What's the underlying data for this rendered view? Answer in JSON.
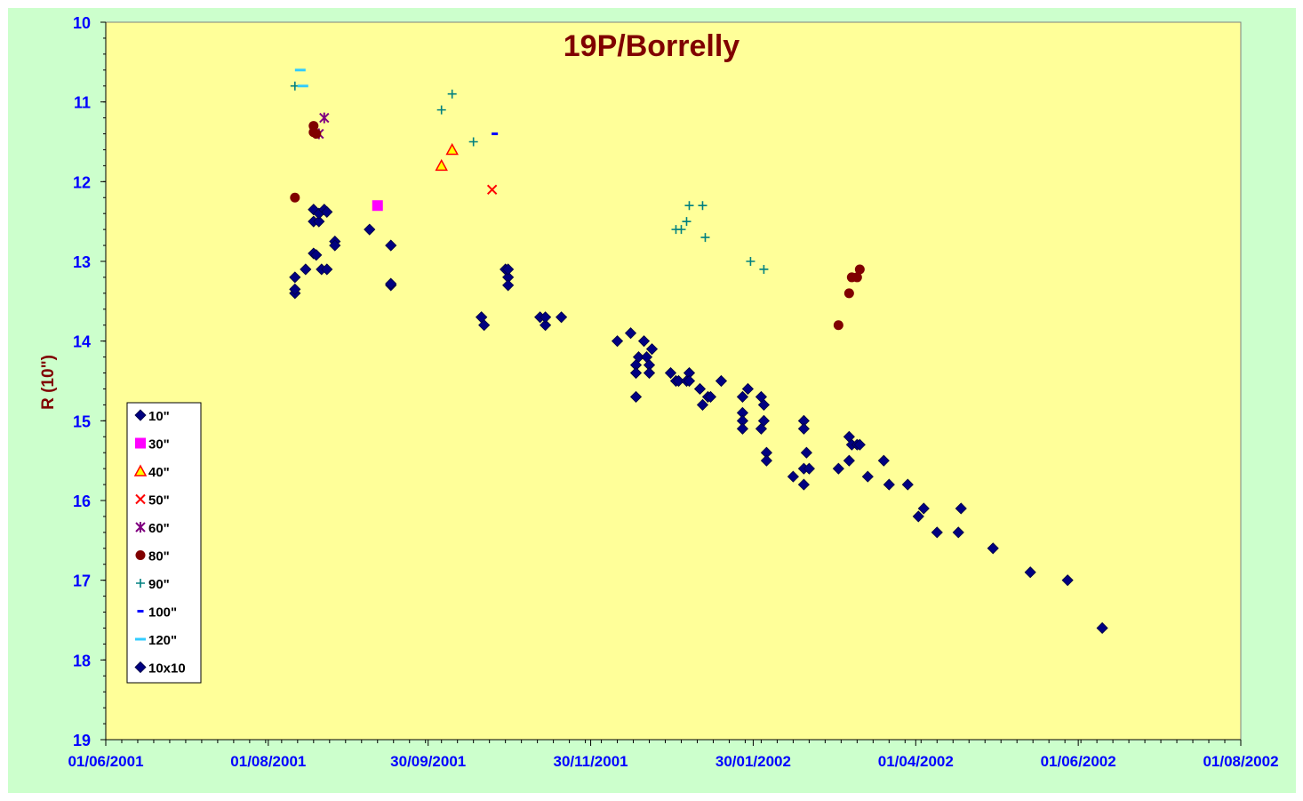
{
  "chart_data": {
    "type": "scatter",
    "title": "19P/Borrelly",
    "xlabel": "",
    "ylabel": "R (10\")",
    "x_axis": {
      "min": "2001-06-01",
      "max": "2002-08-01",
      "tick_labels": [
        "01/06/2001",
        "01/08/2001",
        "30/09/2001",
        "30/11/2001",
        "30/01/2002",
        "01/04/2002",
        "01/06/2002",
        "01/08/2002"
      ],
      "tick_dates": [
        "2001-06-01",
        "2001-08-01",
        "2001-09-30",
        "2001-11-30",
        "2002-01-30",
        "2002-04-01",
        "2002-06-01",
        "2002-08-01"
      ]
    },
    "y_axis": {
      "min": 10,
      "max": 19,
      "inverted": true,
      "ticks": [
        10,
        11,
        12,
        13,
        14,
        15,
        16,
        17,
        18,
        19
      ]
    },
    "legend_position": "left",
    "grid": false,
    "colors": {
      "plot_background": "#FFFF99",
      "frame_background": "#CCFFCC",
      "title": "#800000",
      "axis_labels": "#0000FF"
    },
    "series": [
      {
        "name": "10\"",
        "marker": "diamond",
        "color": "#000080",
        "points": [
          [
            "2001-08-11",
            13.2
          ],
          [
            "2001-08-11",
            13.4
          ],
          [
            "2001-08-11",
            13.35
          ],
          [
            "2001-08-15",
            13.1
          ],
          [
            "2001-08-18",
            12.35
          ],
          [
            "2001-08-18",
            12.5
          ],
          [
            "2001-08-18",
            12.9
          ],
          [
            "2001-08-19",
            12.92
          ],
          [
            "2001-08-20",
            12.5
          ],
          [
            "2001-08-20",
            12.4
          ],
          [
            "2001-08-21",
            13.1
          ],
          [
            "2001-08-22",
            12.35
          ],
          [
            "2001-08-23",
            12.38
          ],
          [
            "2001-08-23",
            13.1
          ],
          [
            "2001-08-26",
            12.75
          ],
          [
            "2001-08-26",
            12.8
          ],
          [
            "2001-09-08",
            12.6
          ],
          [
            "2001-09-16",
            12.8
          ],
          [
            "2001-09-16",
            13.3
          ],
          [
            "2001-09-16",
            13.28
          ],
          [
            "2001-10-20",
            13.7
          ],
          [
            "2001-10-20",
            13.7
          ],
          [
            "2001-10-21",
            13.8
          ],
          [
            "2001-10-29",
            13.1
          ],
          [
            "2001-10-30",
            13.2
          ],
          [
            "2001-10-30",
            13.3
          ],
          [
            "2001-10-30",
            13.1
          ],
          [
            "2001-11-11",
            13.7
          ],
          [
            "2001-11-13",
            13.8
          ],
          [
            "2001-11-13",
            13.7
          ],
          [
            "2001-11-19",
            13.7
          ],
          [
            "2001-12-10",
            14.0
          ],
          [
            "2001-12-15",
            13.9
          ],
          [
            "2001-12-17",
            14.3
          ],
          [
            "2001-12-17",
            14.4
          ],
          [
            "2001-12-17",
            14.7
          ],
          [
            "2001-12-18",
            14.2
          ],
          [
            "2001-12-20",
            14.0
          ],
          [
            "2001-12-21",
            14.2
          ],
          [
            "2001-12-22",
            14.3
          ],
          [
            "2001-12-22",
            14.4
          ],
          [
            "2001-12-23",
            14.1
          ],
          [
            "2001-12-30",
            14.4
          ],
          [
            "2002-01-01",
            14.5
          ],
          [
            "2002-01-02",
            14.5
          ],
          [
            "2002-01-05",
            14.5
          ],
          [
            "2002-01-06",
            14.4
          ],
          [
            "2002-01-06",
            14.5
          ],
          [
            "2002-01-10",
            14.6
          ],
          [
            "2002-01-11",
            14.8
          ],
          [
            "2002-01-13",
            14.7
          ],
          [
            "2002-01-14",
            14.7
          ],
          [
            "2002-01-18",
            14.5
          ],
          [
            "2002-01-26",
            14.7
          ],
          [
            "2002-01-26",
            14.9
          ],
          [
            "2002-01-26",
            15.0
          ],
          [
            "2002-01-26",
            15.1
          ],
          [
            "2002-01-28",
            14.6
          ],
          [
            "2002-02-02",
            15.1
          ],
          [
            "2002-02-02",
            14.7
          ],
          [
            "2002-02-03",
            14.8
          ],
          [
            "2002-02-03",
            15.0
          ],
          [
            "2002-02-04",
            15.4
          ],
          [
            "2002-02-04",
            15.5
          ],
          [
            "2002-02-14",
            15.7
          ],
          [
            "2002-02-18",
            15.6
          ],
          [
            "2002-02-18",
            15.8
          ],
          [
            "2002-02-18",
            15.0
          ],
          [
            "2002-02-18",
            15.1
          ],
          [
            "2002-02-19",
            15.4
          ],
          [
            "2002-02-20",
            15.6
          ],
          [
            "2002-03-03",
            15.6
          ],
          [
            "2002-03-07",
            15.5
          ],
          [
            "2002-03-07",
            15.2
          ],
          [
            "2002-03-08",
            15.3
          ],
          [
            "2002-03-10",
            15.3
          ],
          [
            "2002-03-11",
            15.3
          ],
          [
            "2002-03-14",
            15.7
          ],
          [
            "2002-03-20",
            15.5
          ],
          [
            "2002-03-22",
            15.8
          ],
          [
            "2002-03-29",
            15.8
          ],
          [
            "2002-04-02",
            16.2
          ],
          [
            "2002-04-04",
            16.1
          ],
          [
            "2002-04-09",
            16.4
          ],
          [
            "2002-04-17",
            16.4
          ],
          [
            "2002-04-18",
            16.1
          ],
          [
            "2002-04-30",
            16.6
          ],
          [
            "2002-05-14",
            16.9
          ],
          [
            "2002-05-28",
            17.0
          ],
          [
            "2002-06-10",
            17.6
          ]
        ]
      },
      {
        "name": "30\"",
        "marker": "square",
        "color": "#FF00FF",
        "points": [
          [
            "2001-09-11",
            12.3
          ]
        ]
      },
      {
        "name": "40\"",
        "marker": "triangle",
        "color": "#FFFF00",
        "stroke": "#FF0000",
        "points": [
          [
            "2001-10-05",
            11.8
          ],
          [
            "2001-10-09",
            11.6
          ]
        ]
      },
      {
        "name": "50\"",
        "marker": "x",
        "color": "#FF0000",
        "points": [
          [
            "2001-10-24",
            12.1
          ]
        ]
      },
      {
        "name": "60\"",
        "marker": "star",
        "color": "#800080",
        "points": [
          [
            "2001-08-20",
            11.4
          ],
          [
            "2001-08-22",
            11.2
          ]
        ]
      },
      {
        "name": "80\"",
        "marker": "circle",
        "color": "#800000",
        "points": [
          [
            "2001-08-11",
            12.2
          ],
          [
            "2001-08-18",
            11.3
          ],
          [
            "2001-08-18",
            11.38
          ],
          [
            "2001-08-19",
            11.4
          ],
          [
            "2002-03-03",
            13.8
          ],
          [
            "2002-03-07",
            13.4
          ],
          [
            "2002-03-08",
            13.2
          ],
          [
            "2002-03-10",
            13.2
          ],
          [
            "2002-03-11",
            13.1
          ]
        ]
      },
      {
        "name": "90\"",
        "marker": "plus",
        "color": "#008080",
        "points": [
          [
            "2001-08-11",
            10.8
          ],
          [
            "2001-10-05",
            11.1
          ],
          [
            "2001-10-09",
            10.9
          ],
          [
            "2001-10-17",
            11.5
          ],
          [
            "2002-01-01",
            12.6
          ],
          [
            "2002-01-03",
            12.6
          ],
          [
            "2002-01-05",
            12.5
          ],
          [
            "2002-01-06",
            12.3
          ],
          [
            "2002-01-11",
            12.3
          ],
          [
            "2002-01-12",
            12.7
          ],
          [
            "2002-01-29",
            13.0
          ],
          [
            "2002-02-03",
            13.1
          ]
        ]
      },
      {
        "name": "100\"",
        "marker": "dash",
        "color": "#0000FF",
        "points": [
          [
            "2001-10-25",
            11.4
          ]
        ]
      },
      {
        "name": "120\"",
        "marker": "dash-wide",
        "color": "#33CCFF",
        "points": [
          [
            "2001-08-13",
            10.6
          ],
          [
            "2001-08-14",
            10.8
          ]
        ]
      },
      {
        "name": "10x10",
        "marker": "diamond",
        "color": "#000080",
        "points": []
      }
    ]
  }
}
